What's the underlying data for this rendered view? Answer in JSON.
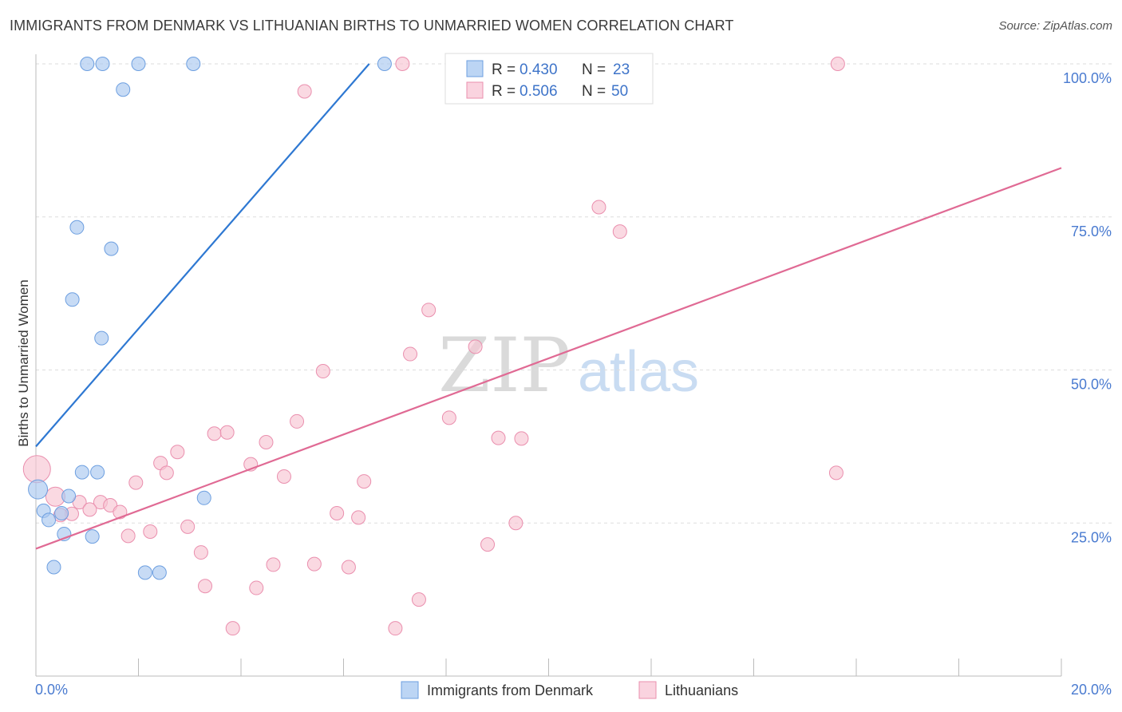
{
  "title": "IMMIGRANTS FROM DENMARK VS LITHUANIAN BIRTHS TO UNMARRIED WOMEN CORRELATION CHART",
  "source": "Source: ZipAtlas.com",
  "watermark": {
    "zip": "ZIP",
    "atlas": "atlas"
  },
  "chart_data": {
    "type": "scatter",
    "title": "IMMIGRANTS FROM DENMARK VS LITHUANIAN BIRTHS TO UNMARRIED WOMEN CORRELATION CHART",
    "xlabel": "",
    "ylabel": "Births to Unmarried Women",
    "xlim": [
      0,
      20
    ],
    "ylim": [
      0,
      100
    ],
    "x_tick_labels": [
      "0.0%",
      "20.0%"
    ],
    "y_ticks": [
      25,
      50,
      75,
      100
    ],
    "y_tick_labels": [
      "25.0%",
      "50.0%",
      "75.0%",
      "100.0%"
    ],
    "grid": true,
    "legend_position": "top-center",
    "stats_legend": [
      {
        "r_label": "R =",
        "r_value": "0.430",
        "n_label": "N =",
        "n_value": "23"
      },
      {
        "r_label": "R =",
        "r_value": "0.506",
        "n_label": "N =",
        "n_value": "50"
      }
    ],
    "series": [
      {
        "name": "Immigrants from Denmark",
        "color": "#a9c8f0",
        "stroke": "#6d9fe0",
        "line_color": "#2e78d2",
        "trendline": [
          [
            0,
            37.5
          ],
          [
            6.5,
            100
          ]
        ],
        "points": [
          [
            1.0,
            100
          ],
          [
            1.3,
            100
          ],
          [
            2.0,
            100
          ],
          [
            3.07,
            100
          ],
          [
            6.8,
            100
          ],
          [
            1.7,
            95.8
          ],
          [
            0.8,
            73.3
          ],
          [
            1.47,
            69.8
          ],
          [
            0.71,
            61.5
          ],
          [
            1.28,
            55.2
          ],
          [
            0.9,
            33.3
          ],
          [
            1.2,
            33.3
          ],
          [
            0.04,
            30.5
          ],
          [
            0.64,
            29.4
          ],
          [
            3.28,
            29.1
          ],
          [
            0.15,
            27.0
          ],
          [
            0.5,
            26.6
          ],
          [
            0.25,
            25.5
          ],
          [
            0.55,
            23.2
          ],
          [
            1.1,
            22.8
          ],
          [
            0.35,
            17.8
          ],
          [
            2.13,
            16.9
          ],
          [
            2.41,
            16.9
          ]
        ]
      },
      {
        "name": "Lithuanians",
        "color": "#f8c4d3",
        "stroke": "#ea8fae",
        "line_color": "#e06a94",
        "trendline": [
          [
            0,
            20.8
          ],
          [
            20,
            83.0
          ]
        ],
        "points": [
          [
            7.15,
            100
          ],
          [
            11.88,
            100
          ],
          [
            15.64,
            100
          ],
          [
            5.24,
            95.5
          ],
          [
            10.98,
            76.6
          ],
          [
            11.39,
            72.6
          ],
          [
            7.66,
            59.8
          ],
          [
            8.57,
            53.8
          ],
          [
            7.3,
            52.6
          ],
          [
            5.6,
            49.8
          ],
          [
            8.06,
            42.2
          ],
          [
            5.09,
            41.6
          ],
          [
            3.48,
            39.6
          ],
          [
            3.73,
            39.8
          ],
          [
            4.49,
            38.2
          ],
          [
            9.02,
            38.9
          ],
          [
            9.47,
            38.8
          ],
          [
            2.76,
            36.6
          ],
          [
            2.43,
            34.8
          ],
          [
            4.19,
            34.6
          ],
          [
            2.55,
            33.2
          ],
          [
            0.02,
            33.8
          ],
          [
            4.84,
            32.6
          ],
          [
            15.61,
            33.2
          ],
          [
            6.4,
            31.8
          ],
          [
            1.95,
            31.6
          ],
          [
            0.38,
            29.3
          ],
          [
            0.85,
            28.4
          ],
          [
            1.26,
            28.4
          ],
          [
            1.45,
            27.9
          ],
          [
            1.05,
            27.2
          ],
          [
            1.64,
            26.8
          ],
          [
            0.7,
            26.5
          ],
          [
            0.48,
            26.3
          ],
          [
            5.87,
            26.6
          ],
          [
            6.29,
            25.9
          ],
          [
            9.36,
            25.0
          ],
          [
            2.96,
            24.4
          ],
          [
            2.23,
            23.6
          ],
          [
            1.8,
            22.9
          ],
          [
            8.81,
            21.5
          ],
          [
            3.22,
            20.2
          ],
          [
            4.63,
            18.2
          ],
          [
            5.43,
            18.3
          ],
          [
            6.1,
            17.8
          ],
          [
            3.3,
            14.7
          ],
          [
            4.3,
            14.4
          ],
          [
            7.47,
            12.5
          ],
          [
            3.84,
            7.8
          ],
          [
            7.01,
            7.8
          ]
        ]
      }
    ]
  }
}
